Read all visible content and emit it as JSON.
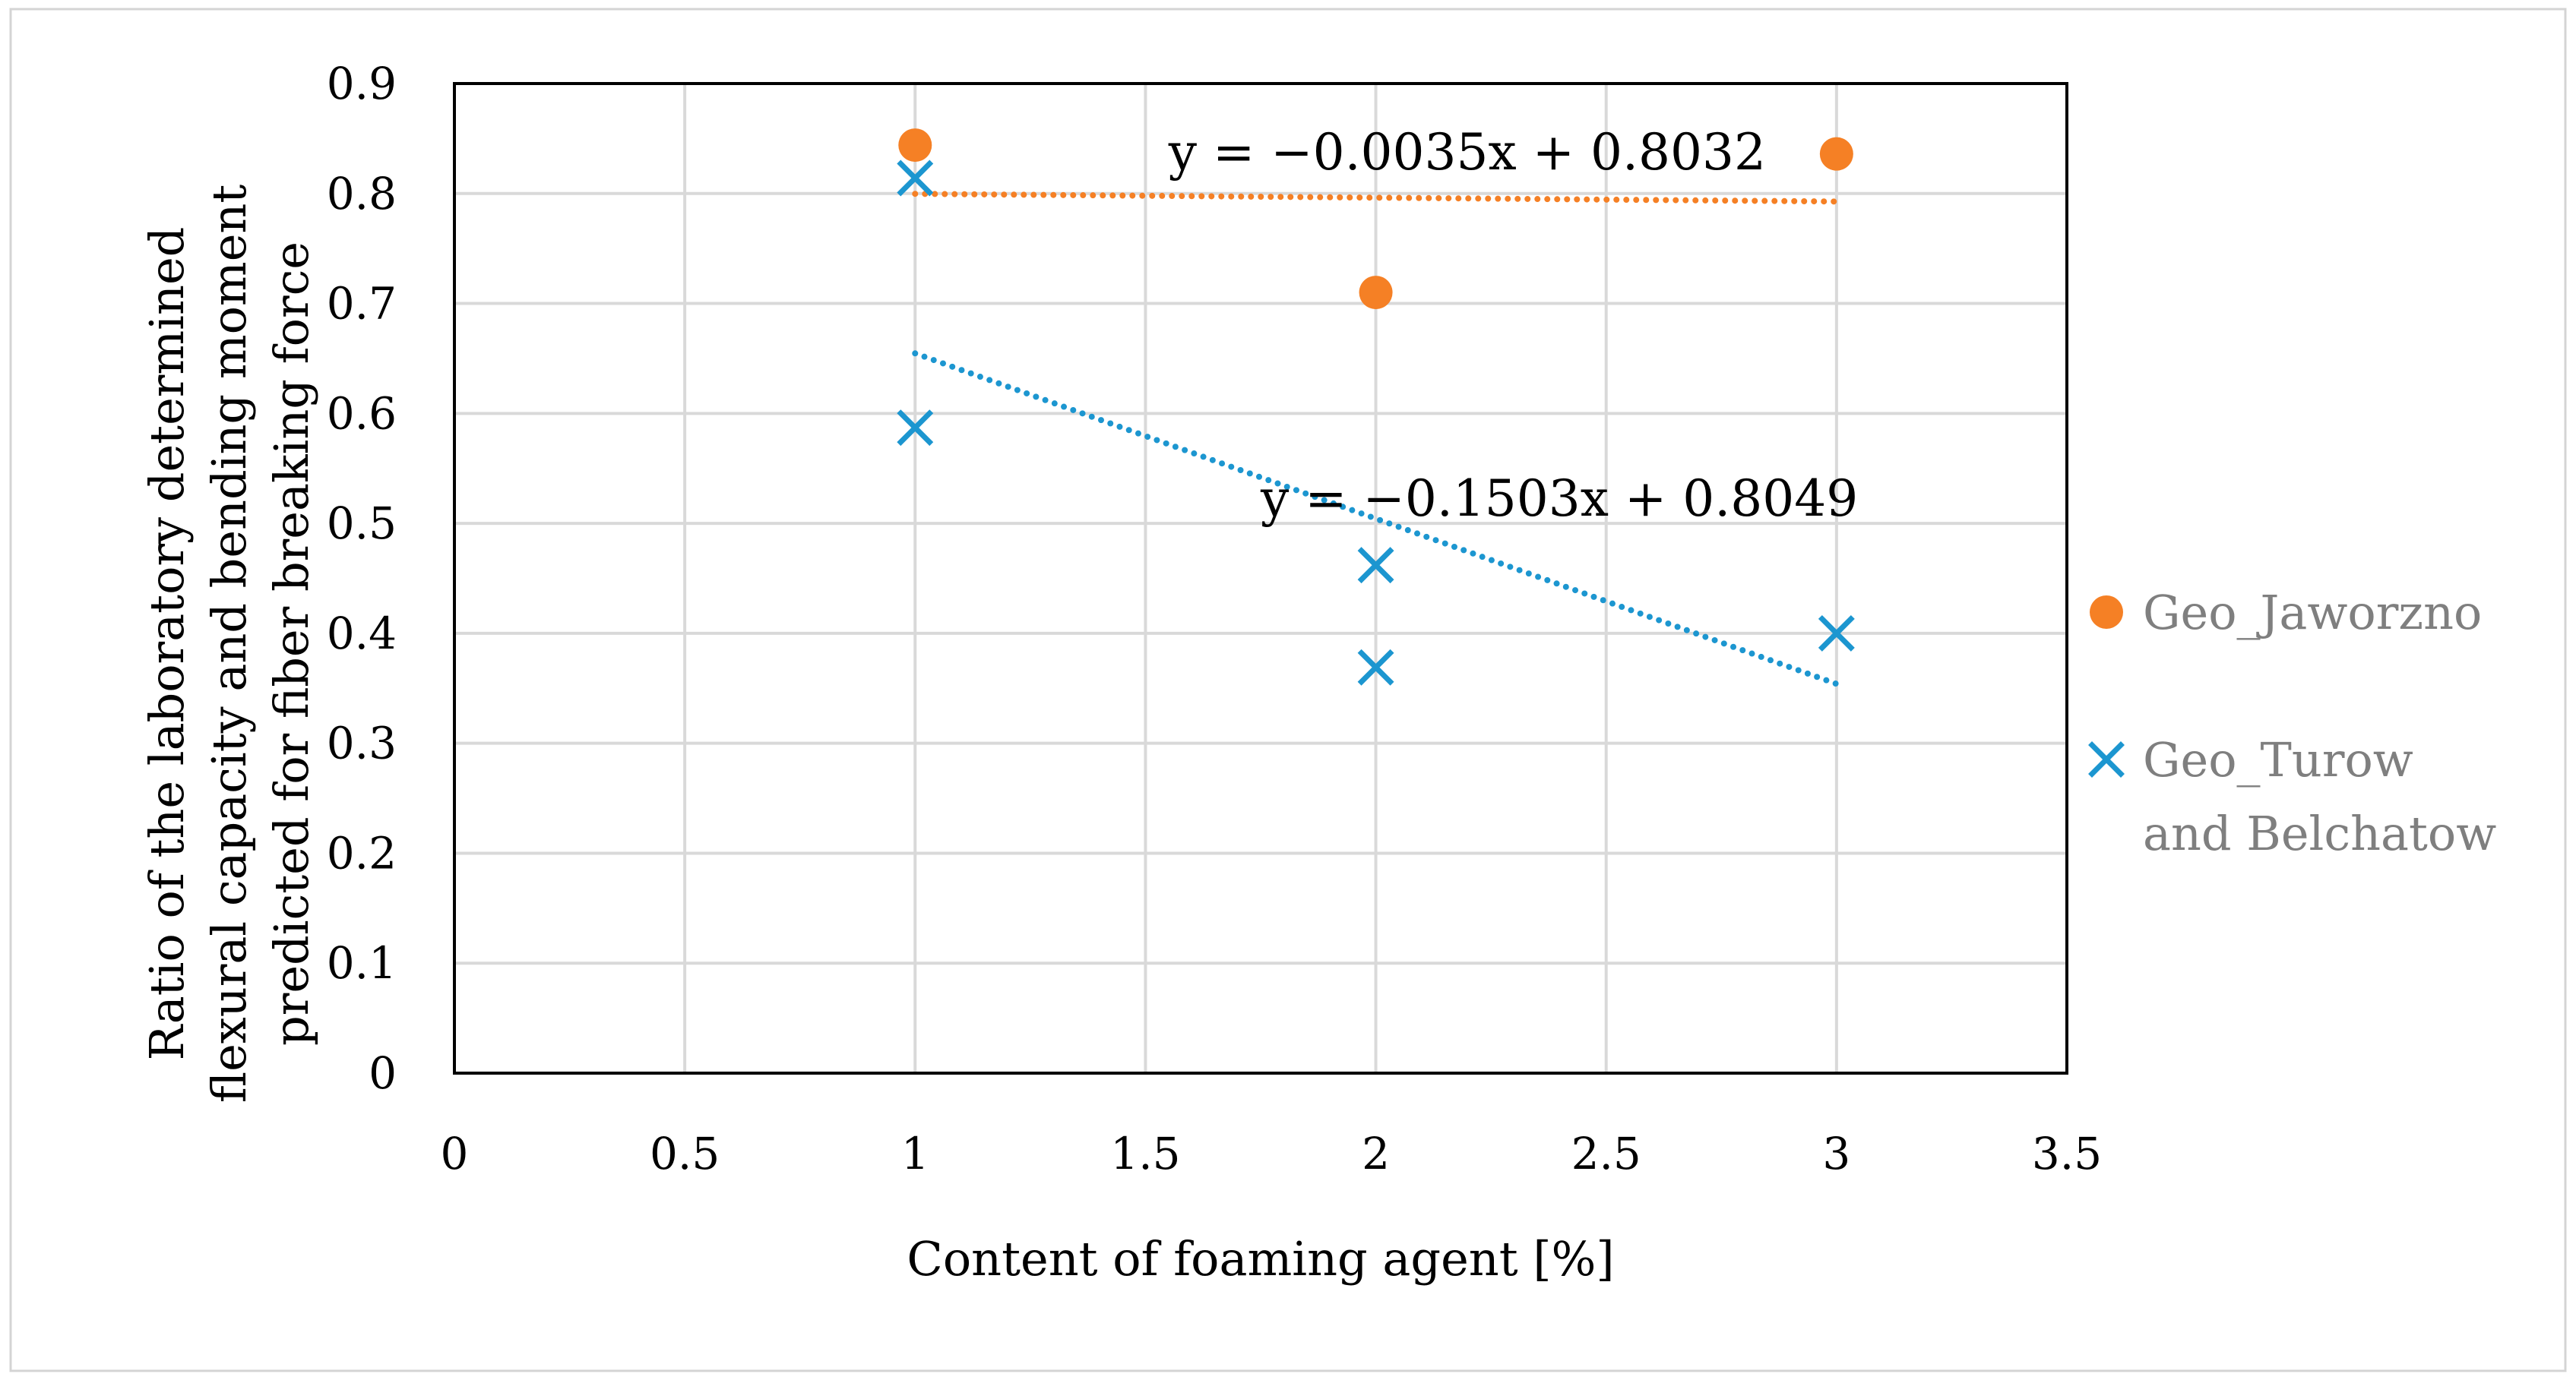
{
  "chart_data": {
    "type": "scatter",
    "title": "",
    "xlabel": "Content of foaming agent [%]",
    "ylabel_lines": [
      "Ratio of the laboratory determined",
      "flexural capacity and bending moment",
      "predicted for fiber breaking force"
    ],
    "xlim": [
      0,
      3.5
    ],
    "ylim": [
      0,
      0.9
    ],
    "x_ticks": [
      0,
      0.5,
      1,
      1.5,
      2,
      2.5,
      3,
      3.5
    ],
    "x_tick_labels": [
      "0",
      "0.5",
      "1",
      "1.5",
      "2",
      "2.5",
      "3",
      "3.5"
    ],
    "y_ticks": [
      0,
      0.1,
      0.2,
      0.3,
      0.4,
      0.5,
      0.6,
      0.7,
      0.8,
      0.9
    ],
    "y_tick_labels": [
      "0",
      "0.1",
      "0.2",
      "0.3",
      "0.4",
      "0.5",
      "0.6",
      "0.7",
      "0.8",
      "0.9"
    ],
    "grid": true,
    "legend_position": "right",
    "series": [
      {
        "name": "Geo_Jaworzno",
        "legend_lines": [
          "Geo_Jaworzno"
        ],
        "marker": "circle",
        "color": "#F58025",
        "points": [
          {
            "x": 1,
            "y": 0.844
          },
          {
            "x": 2,
            "y": 0.71
          },
          {
            "x": 3,
            "y": 0.836
          }
        ],
        "trendline": {
          "slope": -0.0035,
          "intercept": 0.8032,
          "x_range": [
            1,
            3
          ],
          "equation": "y = −0.0035x + 0.8032"
        }
      },
      {
        "name": "Geo_Turow and Belchatow",
        "legend_lines": [
          "Geo_Turow",
          "and Belchatow"
        ],
        "marker": "x",
        "color": "#1C96D0",
        "points": [
          {
            "x": 1,
            "y": 0.814
          },
          {
            "x": 1,
            "y": 0.587
          },
          {
            "x": 2,
            "y": 0.462
          },
          {
            "x": 2,
            "y": 0.369
          },
          {
            "x": 3,
            "y": 0.4
          }
        ],
        "trendline": {
          "slope": -0.1503,
          "intercept": 0.8049,
          "x_range": [
            1,
            3
          ],
          "equation": "y = −0.1503x + 0.8049"
        }
      }
    ]
  }
}
